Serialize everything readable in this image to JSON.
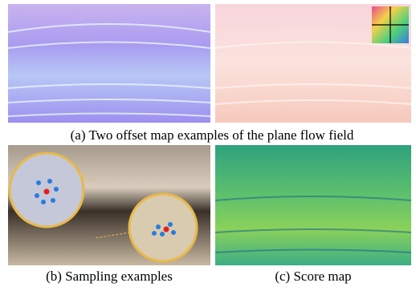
{
  "figure": {
    "caption_a": "(a) Two offset map examples of the plane flow field",
    "caption_b": "(b) Sampling examples",
    "caption_c": "(c) Score map"
  }
}
